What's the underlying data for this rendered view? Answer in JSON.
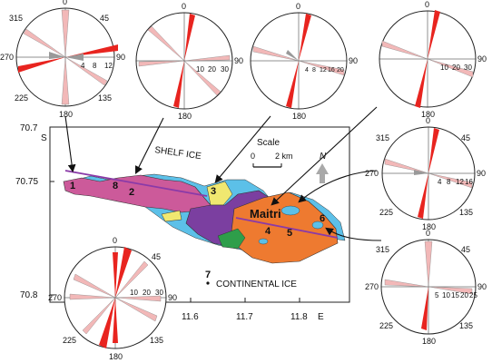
{
  "map": {
    "lat_labels": [
      "70.7",
      "70.75",
      "70.8"
    ],
    "lat_axis_letter": "S",
    "lon_labels": [
      "11.6",
      "11.7",
      "11.8"
    ],
    "lon_axis_letter": "E",
    "scale_title": "Scale",
    "scale_zero": "0",
    "scale_end": "2 km",
    "north_label": "N",
    "shelf_ice_label": "SHELF ICE",
    "continental_ice_label": "CONTINENTAL ICE",
    "maitri_label": "Maitri",
    "site_numbers": [
      "1",
      "8",
      "2",
      "3",
      "4",
      "5",
      "6",
      "7"
    ],
    "colors": {
      "region_west": "#cc5a9a",
      "region_center": "#7b3fa0",
      "region_east": "#ee7a30",
      "lake_blue": "#5cc0e8",
      "yellow": "#f0e870",
      "green": "#2e9e4a",
      "line_purple": "#8a3aa8"
    }
  },
  "rose_labels": {
    "d0": "0",
    "d45": "45",
    "d90": "90",
    "d135": "135",
    "d180": "180",
    "d225": "225",
    "d270": "270",
    "d315": "315"
  },
  "roses": [
    {
      "id": "rose-1",
      "scale_labels": [
        "4",
        "8",
        "12"
      ],
      "colors": {
        "primary": "#e8241f",
        "secondary": "#f2b8b8",
        "minor": "#999999"
      }
    },
    {
      "id": "rose-2",
      "scale_labels": [
        "10",
        "20",
        "30"
      ]
    },
    {
      "id": "rose-3",
      "scale_labels": [
        "4",
        "8",
        "12",
        "16",
        "20"
      ]
    },
    {
      "id": "rose-4",
      "scale_labels": [
        "10",
        "20",
        "30"
      ]
    },
    {
      "id": "rose-5",
      "scale_labels": [
        "4",
        "8",
        "12",
        "16"
      ]
    },
    {
      "id": "rose-6",
      "scale_labels": [
        "5",
        "10",
        "15",
        "20",
        "25"
      ]
    },
    {
      "id": "rose-7",
      "scale_labels": [
        "10",
        "20",
        "30"
      ]
    }
  ]
}
